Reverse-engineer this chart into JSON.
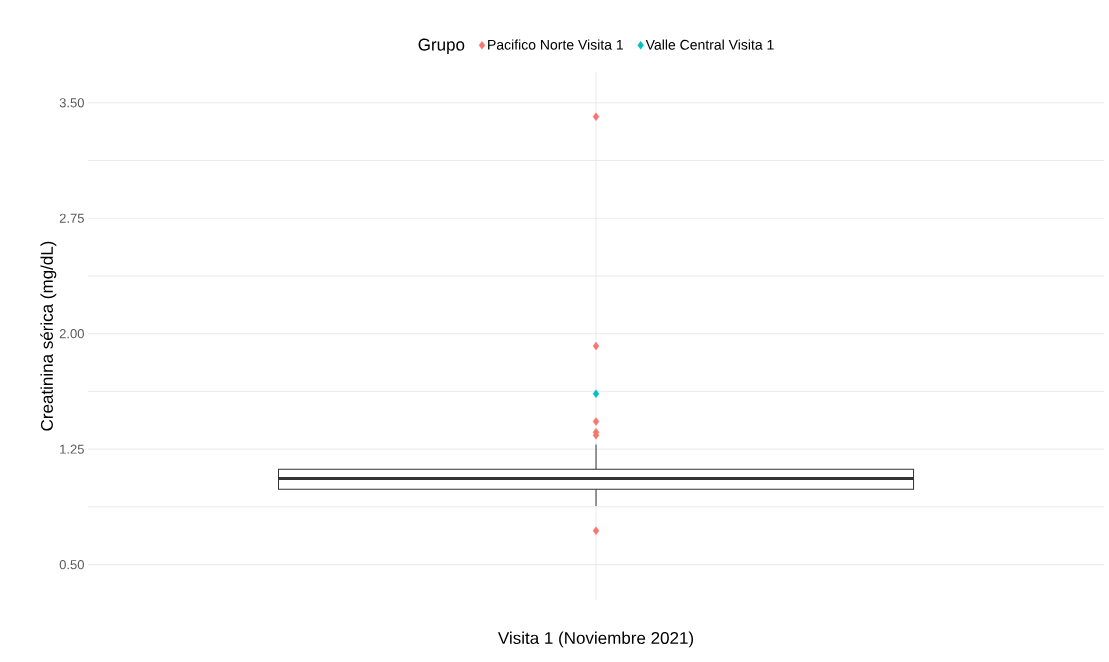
{
  "chart_data": {
    "type": "box",
    "ylabel": "Creatinina sérica (mg/dL)",
    "legend_title": "Grupo",
    "legend": "top",
    "grid": true,
    "marker": "diamond",
    "categories": [
      "Visita 1 (Noviembre 2021)"
    ],
    "ylim": [
      0.27,
      3.7
    ],
    "yticks": [
      {
        "value": 0.5,
        "label": "0.50"
      },
      {
        "value": 0.875,
        "label": null
      },
      {
        "value": 1.25,
        "label": "1.25"
      },
      {
        "value": 1.625,
        "label": null
      },
      {
        "value": 2.0,
        "label": "2.00"
      },
      {
        "value": 2.375,
        "label": null
      },
      {
        "value": 2.75,
        "label": "2.75"
      },
      {
        "value": 3.125,
        "label": null
      },
      {
        "value": 3.5,
        "label": "3.50"
      }
    ],
    "series": [
      {
        "color": "#333333",
        "boxes": [
          {
            "low": 0.88,
            "q1": 0.99,
            "median": 1.06,
            "q3": 1.12,
            "high": 1.28
          }
        ]
      },
      {
        "type": "scatter",
        "name": "Pacifico Norte Visita 1",
        "color": "#f8766d",
        "x": [
          "Visita 1 (Noviembre 2021)",
          "Visita 1 (Noviembre 2021)",
          "Visita 1 (Noviembre 2021)",
          "Visita 1 (Noviembre 2021)",
          "Visita 1 (Noviembre 2021)",
          "Visita 1 (Noviembre 2021)"
        ],
        "values": [
          3.41,
          1.92,
          1.43,
          1.36,
          1.34,
          0.72
        ]
      },
      {
        "type": "scatter",
        "name": "Valle Central Visita 1",
        "color": "#00bfc4",
        "x": [
          "Visita 1 (Noviembre 2021)"
        ],
        "values": [
          1.61
        ]
      }
    ]
  }
}
